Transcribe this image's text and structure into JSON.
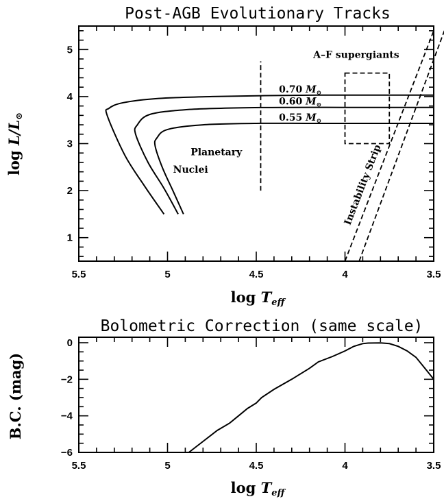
{
  "chart_data": [
    {
      "type": "line",
      "title": "Post-AGB Evolutionary Tracks",
      "xlabel": "log T_eff",
      "ylabel": "log L/L_sun",
      "x_reversed": true,
      "xlim": [
        5.5,
        3.5
      ],
      "ylim": [
        0.5,
        5.5
      ],
      "xticks": [
        5.5,
        5,
        4.5,
        4,
        3.5
      ],
      "xtick_labels": [
        "5.5",
        "5",
        "4.5",
        "4",
        "3.5"
      ],
      "yticks": [
        1,
        2,
        3,
        4,
        5
      ],
      "ytick_labels": [
        "1",
        "2",
        "3",
        "4",
        "5"
      ],
      "series": [
        {
          "name": "0.70 M_sun",
          "mass_label": "0.70",
          "x": [
            5.02,
            5.13,
            5.24,
            5.34,
            5.33,
            5.25,
            5.05,
            4.75,
            4.45,
            4.15,
            3.85,
            3.5
          ],
          "y": [
            1.5,
            2.1,
            2.75,
            3.6,
            3.75,
            3.87,
            3.96,
            4.0,
            4.02,
            4.03,
            4.03,
            4.03
          ]
        },
        {
          "name": "0.60 M_sun",
          "mass_label": "0.60",
          "x": [
            4.94,
            5.02,
            5.11,
            5.18,
            5.17,
            5.1,
            4.9,
            4.6,
            4.3,
            4.0,
            3.7,
            3.5
          ],
          "y": [
            1.5,
            2.05,
            2.6,
            3.2,
            3.4,
            3.62,
            3.72,
            3.76,
            3.77,
            3.77,
            3.77,
            3.77
          ]
        },
        {
          "name": "0.55 M_sun",
          "mass_label": "0.55",
          "x": [
            4.91,
            4.97,
            5.03,
            5.07,
            5.06,
            5.0,
            4.8,
            4.5,
            4.2,
            3.9,
            3.5
          ],
          "y": [
            1.5,
            2.0,
            2.5,
            2.95,
            3.12,
            3.3,
            3.4,
            3.43,
            3.43,
            3.43,
            3.43
          ]
        }
      ],
      "dividers": [
        {
          "x": 4.475,
          "y_from": 2.0,
          "y_to": 4.75
        }
      ],
      "regions": [
        {
          "name": "A-F supergiants",
          "label": "A–F supergiants",
          "x": [
            4.0,
            3.75
          ],
          "y": [
            3.0,
            4.5
          ]
        },
        {
          "name": "Instability Strip",
          "label": "Instability Strip",
          "edges": [
            [
              [
                4.0,
                0.5
              ],
              [
                3.5,
                5.4
              ]
            ],
            [
              [
                3.92,
                0.5
              ],
              [
                3.44,
                5.4
              ]
            ]
          ]
        }
      ],
      "annotations": [
        {
          "text": "Planetary",
          "x": 4.725,
          "y": 2.75
        },
        {
          "text": "Nuclei",
          "x": 4.87,
          "y": 2.38
        }
      ],
      "mass_unit": "M"
    },
    {
      "type": "line",
      "title": "Bolometric Correction (same scale)",
      "xlabel": "log T_eff",
      "ylabel": "B.C. (mag)",
      "x_reversed": true,
      "xlim": [
        5.5,
        3.5
      ],
      "ylim": [
        -6,
        0.3
      ],
      "xticks": [
        5.5,
        5,
        4.5,
        4,
        3.5
      ],
      "xtick_labels": [
        "5.5",
        "5",
        "4.5",
        "4",
        "3.5"
      ],
      "yticks": [
        0,
        -2,
        -4,
        -6
      ],
      "ytick_labels": [
        "0",
        "−2",
        "−4",
        "−6"
      ],
      "series": [
        {
          "x": [
            4.88,
            4.8,
            4.72,
            4.65,
            4.6,
            4.55,
            4.5,
            4.47,
            4.4,
            4.3,
            4.2,
            4.15,
            4.07,
            4.0,
            3.95,
            3.9,
            3.87,
            3.8,
            3.75,
            3.7,
            3.65,
            3.6,
            3.55,
            3.5
          ],
          "y": [
            -6.0,
            -5.4,
            -4.8,
            -4.4,
            -4.0,
            -3.6,
            -3.3,
            -3.0,
            -2.55,
            -2.0,
            -1.4,
            -1.05,
            -0.75,
            -0.45,
            -0.2,
            -0.05,
            -0.02,
            -0.01,
            -0.05,
            -0.2,
            -0.45,
            -0.8,
            -1.4,
            -2.0
          ]
        }
      ]
    }
  ]
}
